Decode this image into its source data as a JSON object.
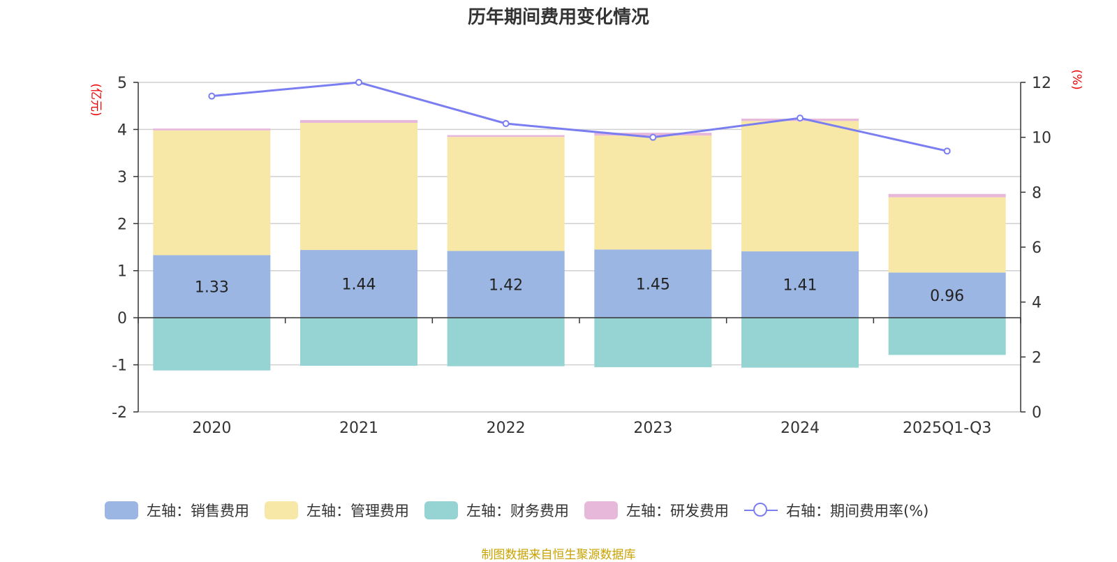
{
  "title": "历年期间费用变化情况",
  "source_note": "制图数据来自恒生聚源数据库",
  "chart_data": {
    "type": "bar",
    "stacked": true,
    "categories": [
      "2020",
      "2021",
      "2022",
      "2023",
      "2024",
      "2025Q1-Q3"
    ],
    "left_axis": {
      "unit_label": "(亿元)",
      "ylim": [
        -2,
        5
      ],
      "ticks": [
        -2,
        -1,
        0,
        1,
        2,
        3,
        4,
        5
      ]
    },
    "right_axis": {
      "unit_label": "(%)",
      "ylim": [
        0,
        12
      ],
      "ticks": [
        0,
        2,
        4,
        6,
        8,
        10,
        12
      ]
    },
    "series": [
      {
        "name": "左轴：销售费用",
        "color": "#9bb6e2",
        "axis": "left",
        "values": [
          1.33,
          1.44,
          1.42,
          1.45,
          1.41,
          0.96
        ],
        "show_labels": true
      },
      {
        "name": "左轴：管理费用",
        "color": "#f8e8a8",
        "axis": "left",
        "values": [
          2.65,
          2.7,
          2.42,
          2.42,
          2.77,
          1.6
        ]
      },
      {
        "name": "左轴：财务费用",
        "color": "#96d4d4",
        "axis": "left",
        "values": [
          -1.12,
          -1.02,
          -1.03,
          -1.05,
          -1.06,
          -0.79
        ]
      },
      {
        "name": "左轴：研发费用",
        "color": "#e7b8da",
        "axis": "left",
        "values": [
          0.04,
          0.06,
          0.04,
          0.06,
          0.05,
          0.07
        ]
      }
    ],
    "line_series": {
      "name": "右轴：期间费用率(%)",
      "color": "#7b7ef0",
      "axis": "right",
      "values": [
        11.5,
        12.0,
        10.5,
        10.0,
        10.7,
        9.5
      ]
    }
  }
}
